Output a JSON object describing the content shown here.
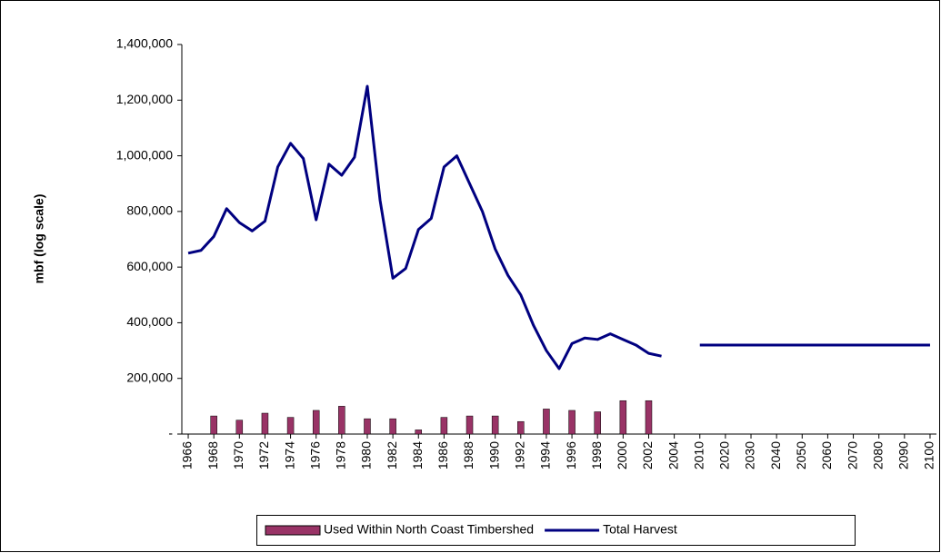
{
  "chart_data": {
    "type": "bar-line",
    "y_label": "mbf (log scale)",
    "categories": [
      "1966",
      null,
      "1968",
      null,
      "1970",
      null,
      "1972",
      null,
      "1974",
      null,
      "1976",
      null,
      "1978",
      null,
      "1980",
      null,
      "1982",
      null,
      "1984",
      null,
      "1986",
      null,
      "1988",
      null,
      "1990",
      null,
      "1992",
      null,
      "1994",
      null,
      "1996",
      null,
      "1998",
      null,
      "2000",
      null,
      "2002",
      null,
      "2004",
      null,
      "2010",
      null,
      "2020",
      null,
      "2030",
      null,
      "2040",
      null,
      "2050",
      null,
      "2060",
      null,
      "2070",
      null,
      "2080",
      null,
      "2090",
      null,
      "2100"
    ],
    "series": [
      {
        "name": "Used Within North Coast Timbershed",
        "type": "bar",
        "color": "#993366",
        "values": [
          null,
          null,
          65000,
          null,
          50000,
          null,
          75000,
          null,
          60000,
          null,
          85000,
          null,
          100000,
          null,
          55000,
          null,
          55000,
          null,
          15000,
          null,
          60000,
          null,
          65000,
          null,
          65000,
          null,
          45000,
          null,
          90000,
          null,
          85000,
          null,
          80000,
          null,
          120000,
          null,
          120000,
          null,
          null,
          null,
          null,
          null,
          null,
          null,
          null,
          null,
          null,
          null,
          null,
          null,
          null,
          null,
          null,
          null,
          null,
          null,
          null,
          null,
          null
        ]
      },
      {
        "name": "Total Harvest",
        "type": "line",
        "color": "#000080",
        "values": [
          650000,
          660000,
          710000,
          810000,
          760000,
          730000,
          765000,
          960000,
          1045000,
          990000,
          770000,
          970000,
          930000,
          995000,
          1250000,
          840000,
          560000,
          595000,
          735000,
          775000,
          960000,
          1000000,
          900000,
          800000,
          665000,
          570000,
          500000,
          390000,
          300000,
          235000,
          325000,
          345000,
          340000,
          360000,
          340000,
          320000,
          290000,
          280000,
          null,
          null,
          320000,
          320000,
          320000,
          320000,
          320000,
          320000,
          320000,
          320000,
          320000,
          320000,
          320000,
          320000,
          320000,
          320000,
          320000,
          320000,
          320000,
          320000,
          320000
        ]
      }
    ],
    "ylim": [
      0,
      1400000
    ],
    "yticks": [
      {
        "value": 0,
        "label": "-"
      },
      {
        "value": 200000,
        "label": "200,000"
      },
      {
        "value": 400000,
        "label": "400,000"
      },
      {
        "value": 600000,
        "label": "600,000"
      },
      {
        "value": 800000,
        "label": "800,000"
      },
      {
        "value": 1000000,
        "label": "1,000,000"
      },
      {
        "value": 1200000,
        "label": "1,200,000"
      },
      {
        "value": 1400000,
        "label": "1,400,000"
      }
    ],
    "grid": false
  }
}
